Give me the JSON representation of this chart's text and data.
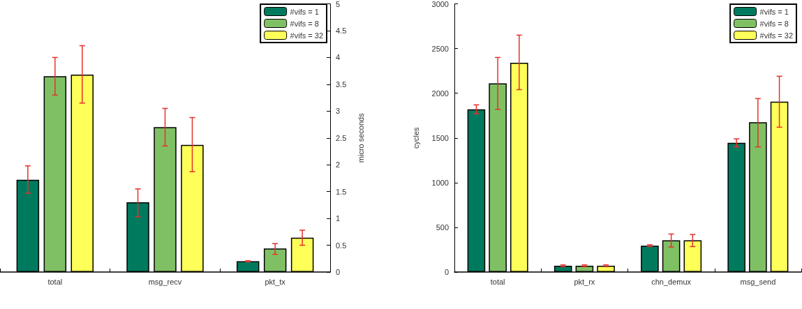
{
  "chart_data": [
    {
      "type": "bar",
      "categories": [
        "total",
        "msg_recv",
        "pkt_tx"
      ],
      "y2label": "micro seconds",
      "y2lim": [
        0,
        5
      ],
      "y2ticks": [
        0,
        0.5,
        1,
        1.5,
        2,
        2.5,
        3,
        3.5,
        4,
        4.5,
        5
      ],
      "legend": "top right",
      "grid": false,
      "series": [
        {
          "name": "#vifs = 1",
          "color": "#007a5e",
          "axis": "y2",
          "values": [
            1.72,
            1.3,
            0.2
          ],
          "errors": [
            [
              1.47,
              1.98
            ],
            [
              1.03,
              1.55
            ],
            [
              0.19,
              0.21
            ]
          ]
        },
        {
          "name": "#vifs = 8",
          "color": "#80c065",
          "axis": "y2",
          "values": [
            3.65,
            2.7,
            0.44
          ],
          "errors": [
            [
              3.3,
              4.0
            ],
            [
              2.35,
              3.05
            ],
            [
              0.33,
              0.53
            ]
          ]
        },
        {
          "name": "#vifs = 32",
          "color": "#ffff5a",
          "axis": "y2",
          "values": [
            3.68,
            2.37,
            0.64
          ],
          "errors": [
            [
              3.15,
              4.22
            ],
            [
              1.87,
              2.88
            ],
            [
              0.5,
              0.78
            ]
          ]
        }
      ]
    },
    {
      "type": "bar",
      "categories": [
        "total",
        "pkt_rx",
        "chn_demux",
        "msg_send"
      ],
      "ylabel": "cycles",
      "ylim": [
        0,
        3000
      ],
      "yticks": [
        0,
        500,
        1000,
        1500,
        2000,
        2500,
        3000
      ],
      "legend": "top right",
      "grid": false,
      "series": [
        {
          "name": "#vifs = 1",
          "color": "#007a5e",
          "values": [
            1820,
            70,
            295,
            1445
          ],
          "errors": [
            [
              1770,
              1870
            ],
            [
              60,
              80
            ],
            [
              285,
              305
            ],
            [
              1400,
              1490
            ]
          ]
        },
        {
          "name": "#vifs = 8",
          "color": "#80c065",
          "values": [
            2110,
            70,
            355,
            1675
          ],
          "errors": [
            [
              1820,
              2400
            ],
            [
              60,
              80
            ],
            [
              280,
              425
            ],
            [
              1400,
              1940
            ]
          ]
        },
        {
          "name": "#vifs = 32",
          "color": "#ffff5a",
          "values": [
            2340,
            70,
            355,
            1905
          ],
          "errors": [
            [
              2040,
              2650
            ],
            [
              60,
              80
            ],
            [
              285,
              420
            ],
            [
              1620,
              2190
            ]
          ]
        }
      ]
    }
  ]
}
